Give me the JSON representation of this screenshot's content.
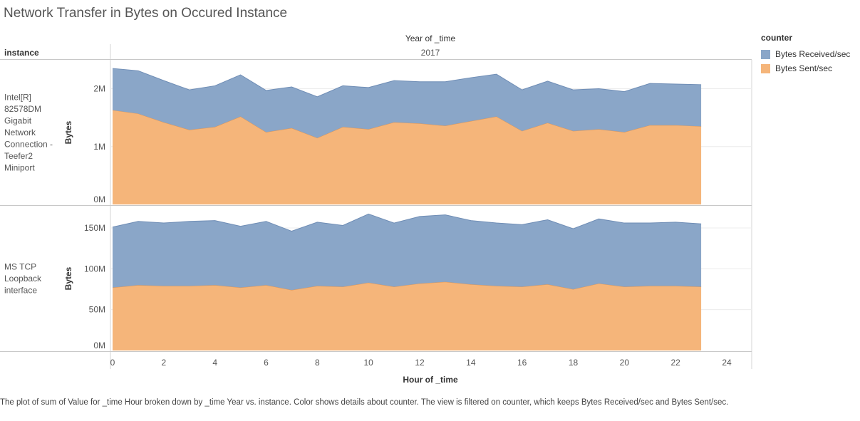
{
  "title": "Network Transfer in Bytes on Occured Instance",
  "caption": "The plot of sum of Value for _time Hour broken down by _time Year vs. instance.  Color shows details about counter. The view is filtered on counter, which keeps Bytes Received/sec and Bytes Sent/sec.",
  "legend": {
    "title": "counter",
    "items": [
      {
        "label": "Bytes Received/sec",
        "color": "#8aa6c8"
      },
      {
        "label": "Bytes Sent/sec",
        "color": "#f5b57a"
      }
    ]
  },
  "chart_data": {
    "type": "area",
    "stacked": true,
    "column_header_title": "Year of _time",
    "column_header_value": "2017",
    "row_header_title": "instance",
    "xlabel": "Hour of _time",
    "ylabel": "Bytes",
    "xlim": [
      0,
      24
    ],
    "xticks": [
      0,
      2,
      4,
      6,
      8,
      10,
      12,
      14,
      16,
      18,
      20,
      22,
      24
    ],
    "x": [
      0,
      1,
      2,
      3,
      4,
      5,
      6,
      7,
      8,
      9,
      10,
      11,
      12,
      13,
      14,
      15,
      16,
      17,
      18,
      19,
      20,
      21,
      22,
      23
    ],
    "panels": [
      {
        "instance_lines": [
          "Intel[R]",
          "82578DM",
          "Gigabit",
          "Network",
          "Connection -",
          "Teefer2",
          "Miniport"
        ],
        "ylim": [
          0,
          2400000
        ],
        "yticks": [
          {
            "value": 0,
            "label": "0M"
          },
          {
            "value": 1000000,
            "label": "1M"
          },
          {
            "value": 2000000,
            "label": "2M"
          }
        ],
        "series": [
          {
            "name": "Bytes Sent/sec",
            "values": [
              1630000,
              1570000,
              1420000,
              1290000,
              1340000,
              1520000,
              1250000,
              1320000,
              1150000,
              1340000,
              1300000,
              1420000,
              1400000,
              1360000,
              1440000,
              1520000,
              1270000,
              1410000,
              1270000,
              1300000,
              1250000,
              1370000,
              1370000,
              1350000
            ]
          },
          {
            "name": "Bytes Received/sec",
            "values": [
              720000,
              740000,
              720000,
              690000,
              710000,
              720000,
              720000,
              710000,
              710000,
              710000,
              720000,
              720000,
              720000,
              760000,
              750000,
              730000,
              710000,
              720000,
              710000,
              700000,
              700000,
              720000,
              710000,
              720000
            ]
          }
        ]
      },
      {
        "instance_lines": [
          "MS TCP",
          "Loopback",
          "interface"
        ],
        "ylim": [
          0,
          170000000
        ],
        "yticks": [
          {
            "value": 0,
            "label": "0M"
          },
          {
            "value": 50000000,
            "label": "50M"
          },
          {
            "value": 100000000,
            "label": "100M"
          },
          {
            "value": 150000000,
            "label": "150M"
          }
        ],
        "series": [
          {
            "name": "Bytes Sent/sec",
            "values": [
              77000000,
              80000000,
              79000000,
              79000000,
              80000000,
              77000000,
              80000000,
              74000000,
              79000000,
              78000000,
              83000000,
              78000000,
              82000000,
              84000000,
              81000000,
              79000000,
              78000000,
              81000000,
              75000000,
              82000000,
              78000000,
              79000000,
              79000000,
              78000000
            ]
          },
          {
            "name": "Bytes Received/sec",
            "values": [
              74000000,
              78000000,
              77000000,
              79000000,
              79000000,
              75000000,
              78000000,
              72000000,
              78000000,
              75000000,
              84000000,
              78000000,
              82000000,
              82000000,
              78000000,
              77000000,
              76000000,
              79000000,
              74000000,
              79000000,
              78000000,
              77000000,
              78000000,
              77000000
            ]
          }
        ]
      }
    ]
  }
}
